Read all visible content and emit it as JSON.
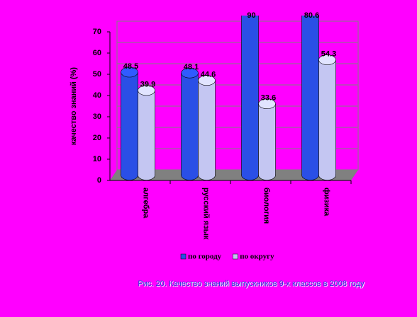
{
  "chart_data": {
    "type": "bar3d",
    "title": "Рис. 20. Качество знаний выпускников 9-х классов в 2008 году",
    "y_label": "качество знаний (%)",
    "categories": [
      "алгебра",
      "русский язык",
      "биология",
      "физика"
    ],
    "series": [
      {
        "name": "по городу",
        "color": "#2a4fe6",
        "values": [
          48.5,
          48.1,
          90,
          80.6
        ]
      },
      {
        "name": "по округу",
        "color": "#c4c6f2",
        "values": [
          39.9,
          44.6,
          33.6,
          54.3
        ]
      }
    ],
    "ylim": [
      0,
      70
    ],
    "yticks": [
      0,
      10,
      20,
      30,
      40,
      50,
      60,
      70
    ],
    "grid": true,
    "legend": "bottom"
  }
}
